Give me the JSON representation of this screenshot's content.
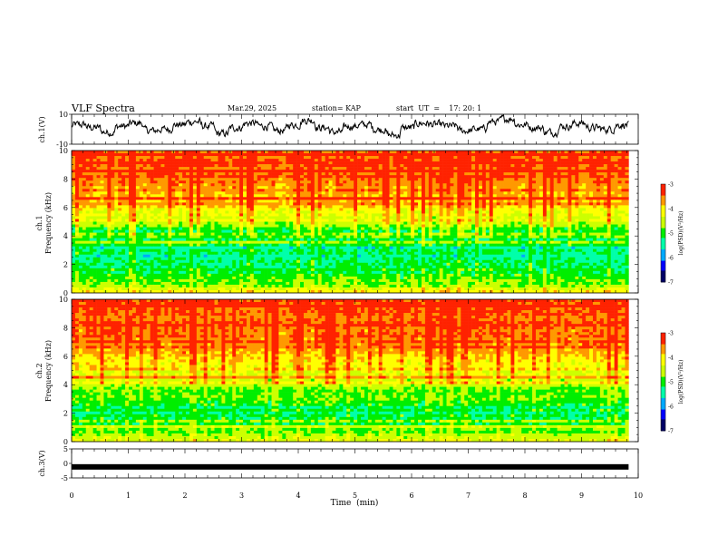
{
  "header": {
    "title": "VLF Spectra",
    "date": "Mar.29, 2025",
    "station": "station= KAP",
    "start_ut": "start  UT  =    17: 20: 1"
  },
  "chart_data": [
    {
      "type": "line",
      "panel": "ch1-voltage",
      "ylabel": "ch.1(V)",
      "ylim": [
        -10,
        10
      ],
      "ytick_labels": [
        "10",
        "-10"
      ],
      "xlim": [
        0,
        10
      ],
      "x_data_end": 9.83,
      "series_description": "noisy waveform fluctuating mostly between about -5 and 5 V",
      "y_sample": [
        3,
        1,
        -2,
        2,
        4,
        -1,
        0,
        3,
        5,
        2,
        -3,
        1,
        4,
        2,
        -1,
        3,
        6,
        1,
        -2,
        2,
        3,
        0,
        -4,
        1,
        4,
        3,
        2,
        -1,
        0,
        5,
        7,
        3,
        1,
        -2,
        2,
        4,
        1,
        0,
        3,
        2
      ]
    },
    {
      "type": "heatmap",
      "panel": "ch1-spectrogram",
      "ylabel": "ch.1\nFrequency  (kHz)",
      "ylim": [
        0,
        10
      ],
      "ytick_labels": [
        "0",
        "2",
        "4",
        "6",
        "8",
        "10"
      ],
      "xlim": [
        0,
        10
      ],
      "x_data_end": 9.83,
      "colorbar": {
        "label": "log(PSD)(V²/Hz)",
        "range": [
          -7,
          -3
        ],
        "tick_labels": [
          "-3",
          "-4",
          "-5",
          "-6",
          "-7"
        ]
      },
      "frequency_profile_kHz": [
        {
          "f": 0.0,
          "psd": -3.8
        },
        {
          "f": 0.5,
          "psd": -4.6
        },
        {
          "f": 1.0,
          "psd": -4.9
        },
        {
          "f": 2.0,
          "psd": -5.3
        },
        {
          "f": 3.0,
          "psd": -5.3
        },
        {
          "f": 4.0,
          "psd": -5.2
        },
        {
          "f": 4.5,
          "psd": -4.9
        },
        {
          "f": 5.5,
          "psd": -4.4
        },
        {
          "f": 6.5,
          "psd": -3.9
        },
        {
          "f": 8.0,
          "psd": -3.4
        },
        {
          "f": 10.0,
          "psd": -3.3
        }
      ]
    },
    {
      "type": "heatmap",
      "panel": "ch2-spectrogram",
      "ylabel": "ch.2\nFrequency  (kHz)",
      "ylim": [
        0,
        10
      ],
      "ytick_labels": [
        "0",
        "2",
        "4",
        "6",
        "8",
        "10"
      ],
      "xlim": [
        0,
        10
      ],
      "x_data_end": 9.83,
      "colorbar": {
        "label": "log(PSD)(V²/Hz)",
        "range": [
          -7,
          -3
        ],
        "tick_labels": [
          "-3",
          "-4",
          "-5",
          "-6",
          "-7"
        ]
      },
      "frequency_profile_kHz": [
        {
          "f": 0.0,
          "psd": -4.2
        },
        {
          "f": 0.5,
          "psd": -4.8
        },
        {
          "f": 1.5,
          "psd": -5.2
        },
        {
          "f": 2.5,
          "psd": -5.2
        },
        {
          "f": 3.5,
          "psd": -4.8
        },
        {
          "f": 4.5,
          "psd": -4.3
        },
        {
          "f": 5.5,
          "psd": -4.1
        },
        {
          "f": 6.5,
          "psd": -3.9
        },
        {
          "f": 8.0,
          "psd": -3.4
        },
        {
          "f": 10.0,
          "psd": -3.3
        }
      ]
    },
    {
      "type": "line",
      "panel": "ch3-voltage",
      "ylabel": "ch.3(V)",
      "ylim": [
        -5,
        5
      ],
      "ytick_labels": [
        "5",
        "0",
        "-5"
      ],
      "xlim": [
        0,
        10
      ],
      "x_data_end": 9.83,
      "series_description": "near-constant dense signal around -1.2 V",
      "y_level": -1.2
    }
  ],
  "x_axis": {
    "label": "Time  (min)",
    "tick_labels": [
      "0",
      "1",
      "2",
      "3",
      "4",
      "5",
      "6",
      "7",
      "8",
      "9",
      "10"
    ]
  },
  "colorscale": [
    "#000066",
    "#0000ff",
    "#00aaff",
    "#00ffaa",
    "#00ee00",
    "#ccff00",
    "#ffff00",
    "#ff9900",
    "#ff2200",
    "#ffeeee"
  ]
}
